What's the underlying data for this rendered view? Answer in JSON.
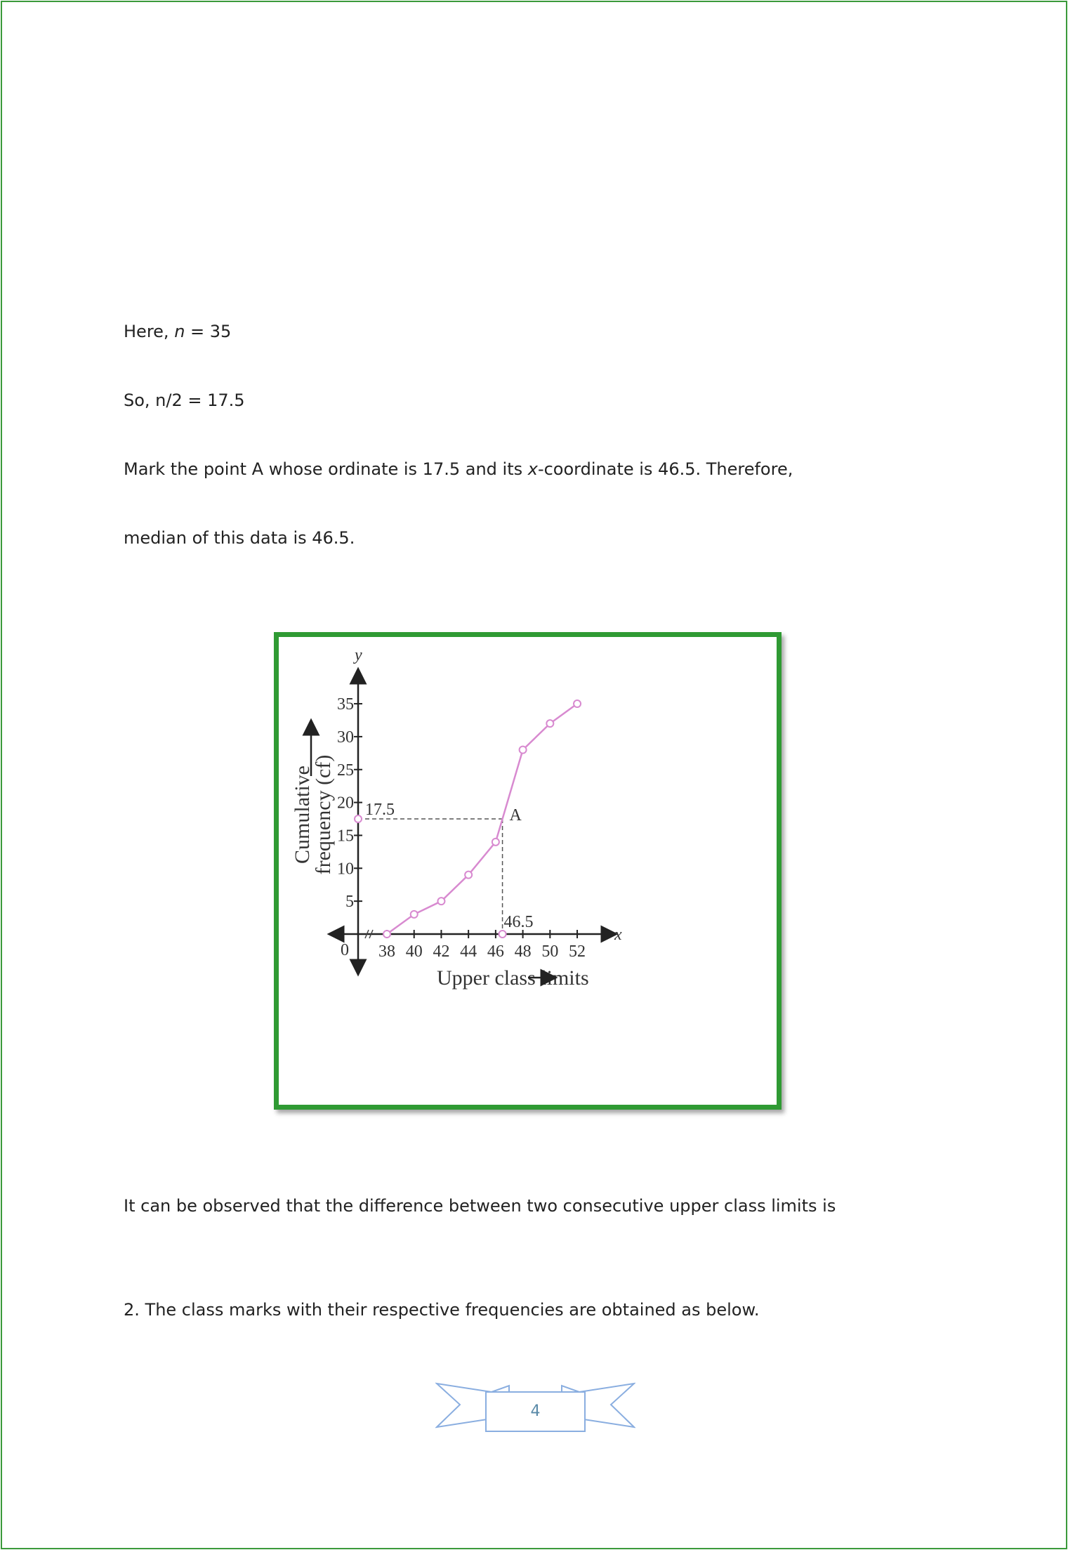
{
  "text": {
    "line1_prefix": "Here, ",
    "line1_var": "n",
    "line1_suffix": " = 35",
    "line2": "So, n/2 = 17.5",
    "line3_prefix": "Mark the point A whose ordinate is 17.5 and its ",
    "line3_var": "x",
    "line3_suffix": "-coordinate is 46.5. Therefore,",
    "line4": "median of this data is 46.5.",
    "line5": "It can be observed that the difference between two consecutive upper class limits is",
    "line6": "2. The class marks with their respective frequencies are obtained as below."
  },
  "page_number": "4",
  "colors": {
    "border": "#2f9a33",
    "curve": "#d88ad0",
    "page_ribbon": "#8aaee0"
  },
  "chart_data": {
    "type": "line",
    "xlabel": "Upper class limits",
    "ylabel_line1": "Cumulative",
    "ylabel_line2": "frequency (cf)",
    "x_axis_name": "x",
    "y_axis_name": "y",
    "origin_label": "0",
    "x": [
      38,
      40,
      42,
      44,
      46,
      48,
      50,
      52
    ],
    "y": [
      0,
      3,
      5,
      9,
      14,
      28,
      32,
      35
    ],
    "x_ticks": [
      "38",
      "40",
      "42",
      "44",
      "46",
      "48",
      "50",
      "52"
    ],
    "y_ticks": [
      "5",
      "10",
      "15",
      "20",
      "25",
      "30",
      "35"
    ],
    "y_tick_values": [
      5,
      10,
      15,
      20,
      25,
      30,
      35
    ],
    "annotation": {
      "point_label": "A",
      "x": 46.5,
      "y": 17.5,
      "x_label": "46.5",
      "y_label": "17.5"
    },
    "axis_break": true,
    "grid": false
  }
}
